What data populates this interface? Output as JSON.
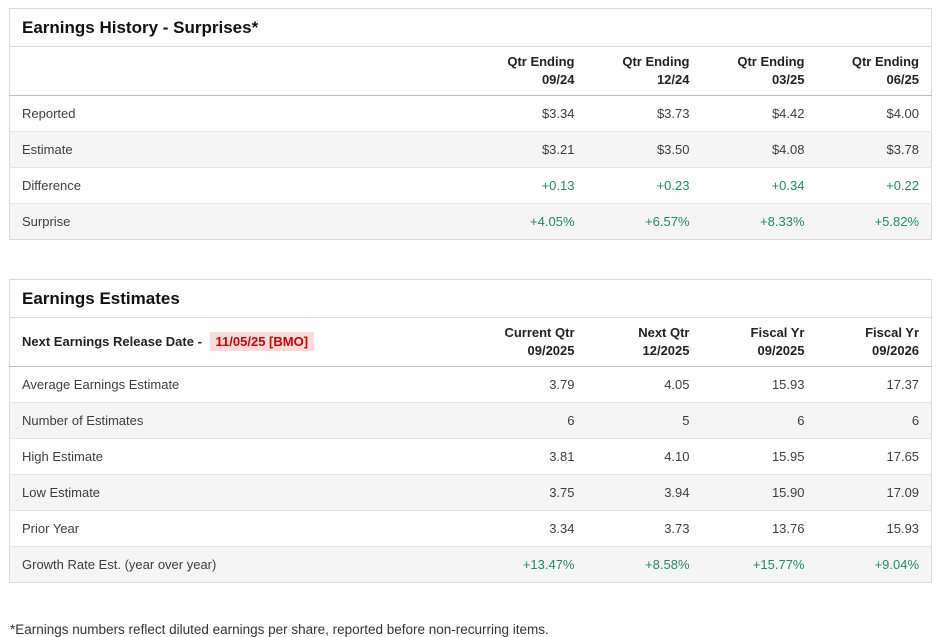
{
  "colors": {
    "positive_green": "#1f8a68",
    "alert_red": "#cc0000",
    "alert_red_bg": "#f9dcdc",
    "alt_row_bg": "#f5f5f5",
    "border": "#d9d9d9"
  },
  "earnings_history": {
    "title": "Earnings History - Surprises*",
    "columns": [
      {
        "l1": "Qtr Ending",
        "l2": "09/24"
      },
      {
        "l1": "Qtr Ending",
        "l2": "12/24"
      },
      {
        "l1": "Qtr Ending",
        "l2": "03/25"
      },
      {
        "l1": "Qtr Ending",
        "l2": "06/25"
      }
    ],
    "rows": [
      {
        "label": "Reported",
        "values": [
          "$3.34",
          "$3.73",
          "$4.42",
          "$4.00"
        ],
        "color": "dark"
      },
      {
        "label": "Estimate",
        "values": [
          "$3.21",
          "$3.50",
          "$4.08",
          "$3.78"
        ],
        "color": "dark"
      },
      {
        "label": "Difference",
        "values": [
          "+0.13",
          "+0.23",
          "+0.34",
          "+0.22"
        ],
        "color": "green"
      },
      {
        "label": "Surprise",
        "values": [
          "+4.05%",
          "+6.57%",
          "+8.33%",
          "+5.82%"
        ],
        "color": "green"
      }
    ]
  },
  "earnings_estimates": {
    "title": "Earnings Estimates",
    "release_label": "Next Earnings Release Date -",
    "release_date": "11/05/25 [BMO]",
    "columns": [
      {
        "l1": "Current Qtr",
        "l2": "09/2025"
      },
      {
        "l1": "Next Qtr",
        "l2": "12/2025"
      },
      {
        "l1": "Fiscal Yr",
        "l2": "09/2025"
      },
      {
        "l1": "Fiscal Yr",
        "l2": "09/2026"
      }
    ],
    "rows": [
      {
        "label": "Average Earnings Estimate",
        "values": [
          "3.79",
          "4.05",
          "15.93",
          "17.37"
        ],
        "color": "dark"
      },
      {
        "label": "Number of Estimates",
        "values": [
          "6",
          "5",
          "6",
          "6"
        ],
        "color": "dark"
      },
      {
        "label": "High Estimate",
        "values": [
          "3.81",
          "4.10",
          "15.95",
          "17.65"
        ],
        "color": "dark"
      },
      {
        "label": "Low Estimate",
        "values": [
          "3.75",
          "3.94",
          "15.90",
          "17.09"
        ],
        "color": "dark"
      },
      {
        "label": "Prior Year",
        "values": [
          "3.34",
          "3.73",
          "13.76",
          "15.93"
        ],
        "color": "dark"
      },
      {
        "label": "Growth Rate Est. (year over year)",
        "values": [
          "+13.47%",
          "+8.58%",
          "+15.77%",
          "+9.04%"
        ],
        "color": "green"
      }
    ]
  },
  "footnote": "*Earnings numbers reflect diluted earnings per share, reported before non-recurring items."
}
